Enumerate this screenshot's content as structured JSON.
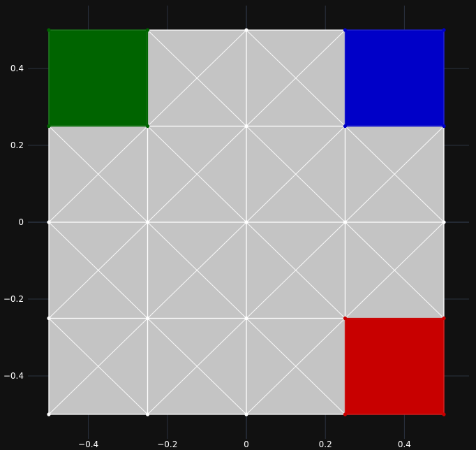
{
  "chart_data": {
    "type": "mesh",
    "title": "",
    "xlabel": "",
    "ylabel": "",
    "xlim": [
      -0.5,
      0.5
    ],
    "ylim": [
      -0.5,
      0.5
    ],
    "grid": true,
    "x_ticks": [
      -0.4,
      -0.2,
      0,
      0.2,
      0.4
    ],
    "x_tick_labels": [
      "−0.4",
      "−0.2",
      "0",
      "0.2",
      "0.4"
    ],
    "y_ticks": [
      0.4,
      0.2,
      0,
      -0.2,
      -0.4
    ],
    "y_tick_labels": [
      "0.4",
      "0.2",
      "0",
      "−0.2",
      "−0.4"
    ],
    "mesh": {
      "nodes_x": [
        -0.5,
        -0.25,
        0,
        0.25,
        0.5
      ],
      "nodes_y": [
        -0.5,
        -0.25,
        0,
        0.25,
        0.5
      ],
      "default_cell_color": "#c4c4c4",
      "edge_color": "#ffffff",
      "highlighted_cells": [
        {
          "x": [
            -0.5,
            -0.25
          ],
          "y": [
            0.25,
            0.5
          ],
          "color": "#006400"
        },
        {
          "x": [
            0.25,
            0.5
          ],
          "y": [
            0.25,
            0.5
          ],
          "color": "#0000c8"
        },
        {
          "x": [
            0.25,
            0.5
          ],
          "y": [
            -0.5,
            -0.25
          ],
          "color": "#c80000"
        }
      ]
    }
  },
  "colors": {
    "background": "#111111",
    "axis_grid": "#2b3340"
  }
}
